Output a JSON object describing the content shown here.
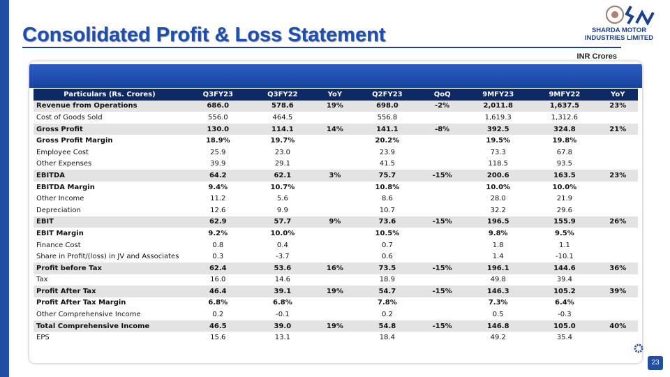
{
  "header": {
    "title": "Consolidated Profit & Loss Statement",
    "company": [
      "SHARDA MOTOR",
      "INDUSTRIES LIMITED"
    ],
    "units": "INR Crores"
  },
  "table": {
    "columns": [
      "Particulars (Rs. Crores)",
      "Q3FY23",
      "Q3FY22",
      "YoY",
      "Q2FY23",
      "QoQ",
      "9MFY23",
      "9MFY22",
      "YoY"
    ],
    "rows": [
      {
        "cells": [
          "Revenue from Operations",
          "686.0",
          "578.6",
          "19%",
          "698.0",
          "-2%",
          "2,011.8",
          "1,637.5",
          "23%"
        ],
        "bold": true,
        "shaded": true
      },
      {
        "cells": [
          "Cost of Goods Sold",
          "556.0",
          "464.5",
          null,
          "556.8",
          null,
          "1,619.3",
          "1,312.6",
          null
        ],
        "bold": false,
        "shaded": false
      },
      {
        "cells": [
          "Gross Profit",
          "130.0",
          "114.1",
          "14%",
          "141.1",
          "-8%",
          "392.5",
          "324.8",
          "21%"
        ],
        "bold": true,
        "shaded": true
      },
      {
        "cells": [
          "Gross Profit Margin",
          "18.9%",
          "19.7%",
          null,
          "20.2%",
          null,
          "19.5%",
          "19.8%",
          null
        ],
        "bold": true,
        "shaded": false
      },
      {
        "cells": [
          "Employee Cost",
          "25.9",
          "23.0",
          null,
          "23.9",
          null,
          "73.3",
          "67.8",
          null
        ],
        "bold": false,
        "shaded": false
      },
      {
        "cells": [
          "Other Expenses",
          "39.9",
          "29.1",
          null,
          "41.5",
          null,
          "118.5",
          "93.5",
          null
        ],
        "bold": false,
        "shaded": false
      },
      {
        "cells": [
          "EBITDA",
          "64.2",
          "62.1",
          "3%",
          "75.7",
          "-15%",
          "200.6",
          "163.5",
          "23%"
        ],
        "bold": true,
        "shaded": true
      },
      {
        "cells": [
          "EBITDA Margin",
          "9.4%",
          "10.7%",
          null,
          "10.8%",
          null,
          "10.0%",
          "10.0%",
          null
        ],
        "bold": true,
        "shaded": false
      },
      {
        "cells": [
          "Other Income",
          "11.2",
          "5.6",
          null,
          "8.6",
          null,
          "28.0",
          "21.9",
          null
        ],
        "bold": false,
        "shaded": false
      },
      {
        "cells": [
          "Depreciation",
          "12.6",
          "9.9",
          null,
          "10.7",
          null,
          "32.2",
          "29.6",
          null
        ],
        "bold": false,
        "shaded": false
      },
      {
        "cells": [
          "EBIT",
          "62.9",
          "57.7",
          "9%",
          "73.6",
          "-15%",
          "196.5",
          "155.9",
          "26%"
        ],
        "bold": true,
        "shaded": true
      },
      {
        "cells": [
          "EBIT Margin",
          "9.2%",
          "10.0%",
          null,
          "10.5%",
          null,
          "9.8%",
          "9.5%",
          null
        ],
        "bold": true,
        "shaded": false
      },
      {
        "cells": [
          "Finance Cost",
          "0.8",
          "0.4",
          null,
          "0.7",
          null,
          "1.8",
          "1.1",
          null
        ],
        "bold": false,
        "shaded": false
      },
      {
        "cells": [
          "Share in Profit/(loss) in JV and Associates",
          "0.3",
          "-3.7",
          null,
          "0.6",
          null,
          "1.4",
          "-10.1",
          null
        ],
        "bold": false,
        "shaded": false
      },
      {
        "cells": [
          "Profit before Tax",
          "62.4",
          "53.6",
          "16%",
          "73.5",
          "-15%",
          "196.1",
          "144.6",
          "36%"
        ],
        "bold": true,
        "shaded": true
      },
      {
        "cells": [
          "Tax",
          "16.0",
          "14.6",
          null,
          "18.9",
          null,
          "49.8",
          "39.4",
          null
        ],
        "bold": false,
        "shaded": false
      },
      {
        "cells": [
          "Profit After Tax",
          "46.4",
          "39.1",
          "19%",
          "54.7",
          "-15%",
          "146.3",
          "105.2",
          "39%"
        ],
        "bold": true,
        "shaded": true
      },
      {
        "cells": [
          "Profit After Tax Margin",
          "6.8%",
          "6.8%",
          null,
          "7.8%",
          null,
          "7.3%",
          "6.4%",
          null
        ],
        "bold": true,
        "shaded": false
      },
      {
        "cells": [
          "Other Comprehensive Income",
          "0.2",
          "-0.1",
          null,
          "0.2",
          null,
          "0.5",
          "-0.3",
          null
        ],
        "bold": false,
        "shaded": false
      },
      {
        "cells": [
          "Total Comprehensive Income",
          "46.5",
          "39.0",
          "19%",
          "54.8",
          "-15%",
          "146.8",
          "105.0",
          "40%"
        ],
        "bold": true,
        "shaded": true
      },
      {
        "cells": [
          "EPS",
          "15.6",
          "13.1",
          null,
          "18.4",
          null,
          "49.2",
          "35.4",
          null
        ],
        "bold": false,
        "shaded": false
      }
    ]
  },
  "footer": {
    "page": "23"
  }
}
